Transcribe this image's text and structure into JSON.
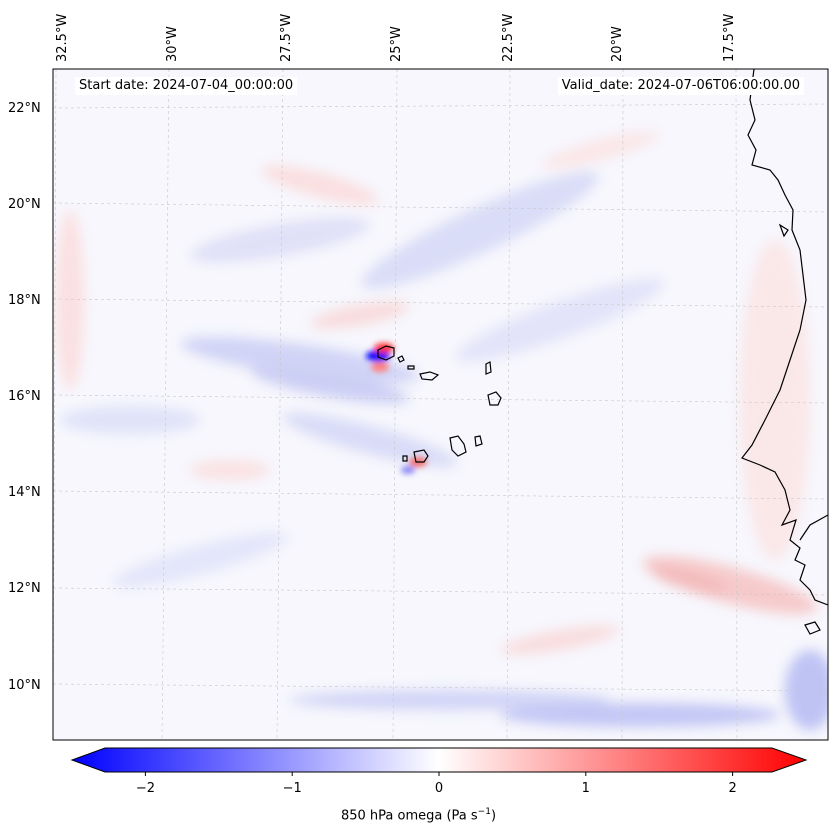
{
  "header": {
    "start_date": "Start date: 2024-07-04_00:00:00",
    "valid_date": "Valid_date: 2024-07-06T06:00:00.00"
  },
  "axes": {
    "lon_labels": [
      "32.5°W",
      "30°W",
      "27.5°W",
      "25°W",
      "22.5°W",
      "20°W",
      "17.5°W"
    ],
    "lat_labels": [
      "22°N",
      "20°N",
      "18°N",
      "16°N",
      "14°N",
      "12°N",
      "10°N"
    ]
  },
  "colorbar": {
    "label_text": "850 hPa omega (Pa s",
    "label_sup": "−1",
    "label_close": ")",
    "ticks": [
      "−2",
      "−1",
      "0",
      "1",
      "2"
    ],
    "tick_values": [
      -2,
      -1,
      0,
      1,
      2
    ],
    "range": [
      -2.5,
      2.5
    ],
    "colors": {
      "low": "#0000ff",
      "mid": "#ffffff",
      "high": "#ff0000"
    }
  }
}
